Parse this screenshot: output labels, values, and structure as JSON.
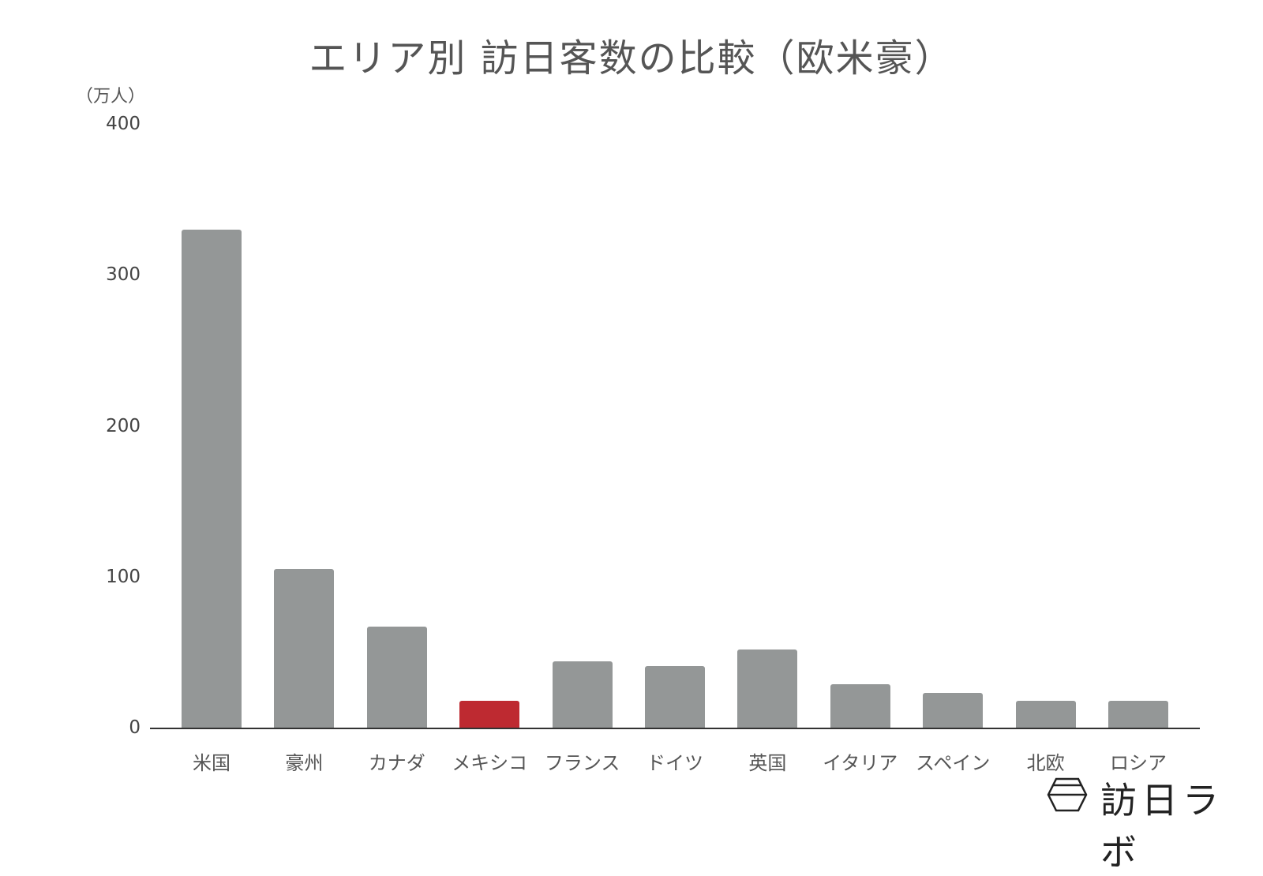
{
  "chart_data": {
    "type": "bar",
    "title": "エリア別 訪日客数の比較（欧米豪）",
    "ylabel": "（万人）",
    "xlabel": "",
    "ylim": [
      0,
      400
    ],
    "yticks": [
      "0",
      "100",
      "200",
      "300",
      "400"
    ],
    "grid": false,
    "legend": null,
    "categories": [
      "米国",
      "豪州",
      "カナダ",
      "メキシコ",
      "フランス",
      "ドイツ",
      "英国",
      "イタリア",
      "スペイン",
      "北欧",
      "ロシア"
    ],
    "values": [
      330,
      105,
      67,
      18,
      44,
      41,
      52,
      29,
      23,
      18,
      18
    ],
    "highlight": {
      "category": "メキシコ",
      "color": "#be2a31"
    },
    "bar_color": "#949797"
  },
  "watermark": {
    "brand": "訪日ラボ"
  }
}
